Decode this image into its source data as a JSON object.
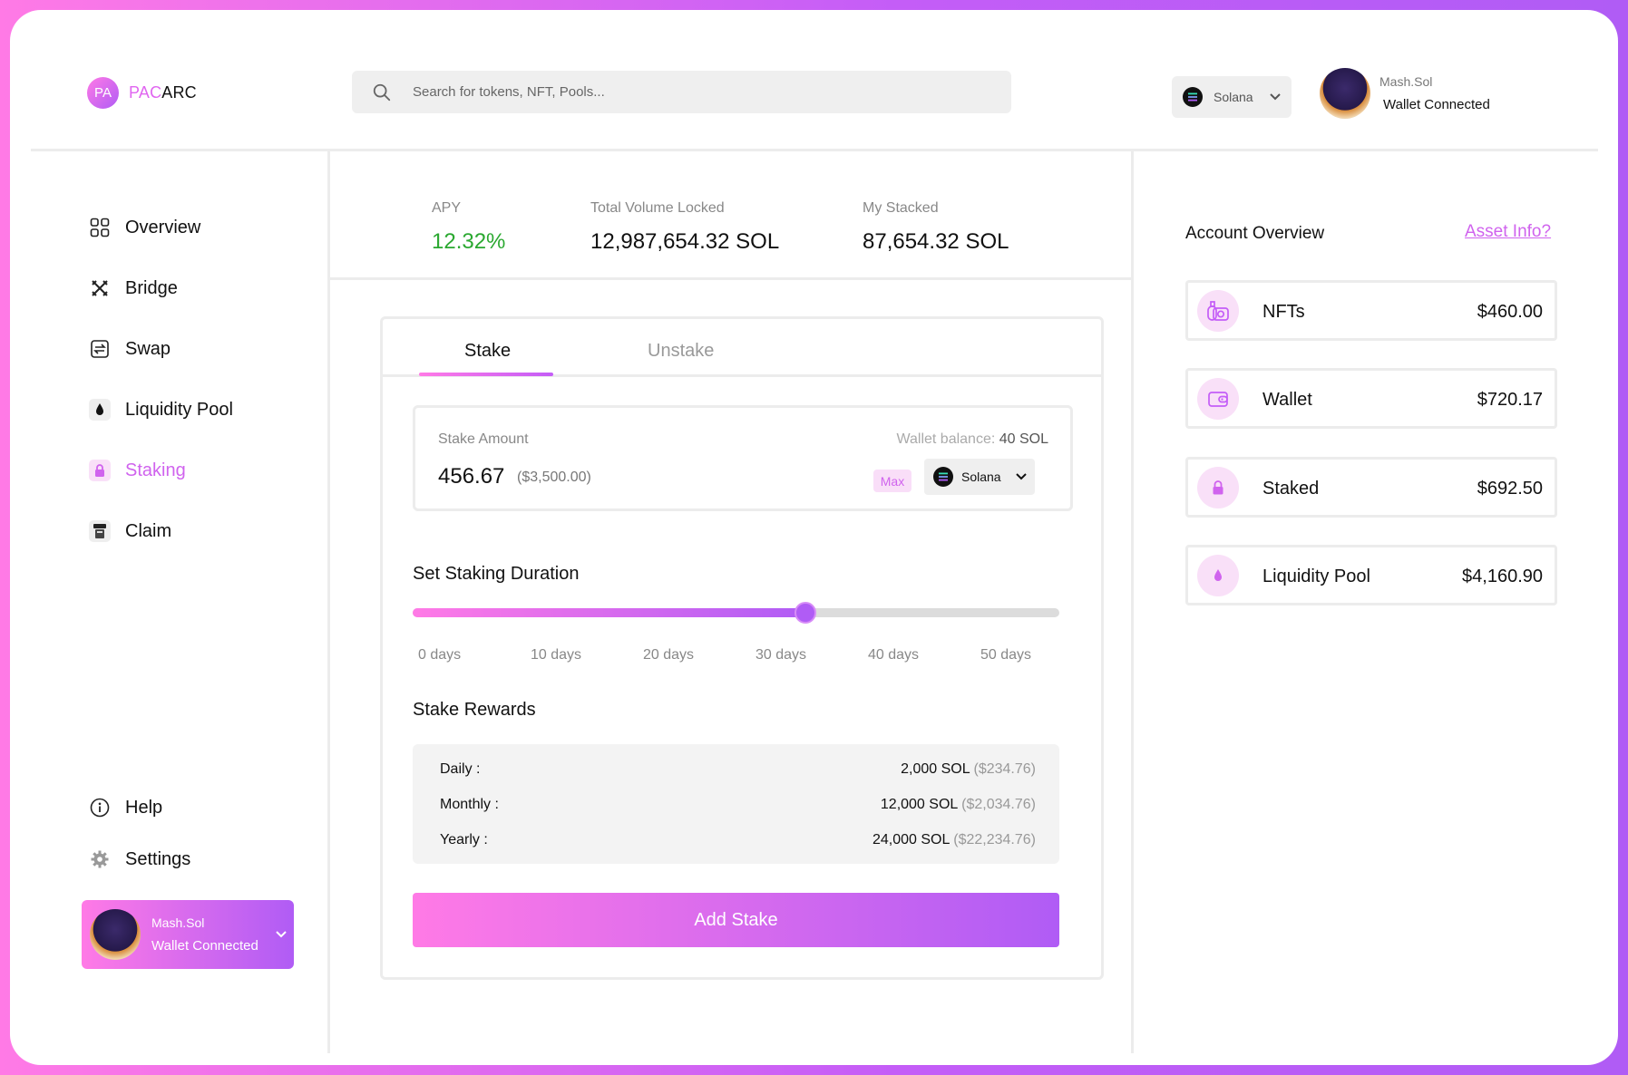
{
  "brand": {
    "badge": "PA",
    "name_accent": "PAC",
    "name_rest": "ARC"
  },
  "search": {
    "placeholder": "Search for tokens, NFT, Pools..."
  },
  "network": {
    "selected": "Solana"
  },
  "user": {
    "name": "Mash.Sol",
    "status": "Wallet Connected"
  },
  "sidebar": {
    "items": [
      {
        "label": "Overview",
        "icon": "grid-icon"
      },
      {
        "label": "Bridge",
        "icon": "bridge-icon"
      },
      {
        "label": "Swap",
        "icon": "swap-icon"
      },
      {
        "label": "Liquidity Pool",
        "icon": "drop-icon"
      },
      {
        "label": "Staking",
        "icon": "lock-icon",
        "active": true
      },
      {
        "label": "Claim",
        "icon": "claim-icon"
      }
    ],
    "bottom": [
      {
        "label": "Help",
        "icon": "info-icon"
      },
      {
        "label": "Settings",
        "icon": "gear-icon"
      }
    ]
  },
  "stats": {
    "apy": {
      "label": "APY",
      "value": "12.32%"
    },
    "tvl": {
      "label": "Total Volume Locked",
      "value": "12,987,654.32 SOL"
    },
    "stacked": {
      "label": "My Stacked",
      "value": "87,654.32 SOL"
    }
  },
  "stake": {
    "tabs": {
      "stake": "Stake",
      "unstake": "Unstake"
    },
    "amount_label": "Stake Amount",
    "wallet_balance_label": "Wallet balance:",
    "wallet_balance_value": "40 SOL",
    "amount": "456.67",
    "amount_usd": "($3,500.00)",
    "max_label": "Max",
    "token": "Solana",
    "duration_title": "Set Staking Duration",
    "duration_fraction": 0.607,
    "ticks": [
      "0 days",
      "10 days",
      "20 days",
      "30 days",
      "40 days",
      "50 days"
    ],
    "rewards_title": "Stake Rewards",
    "rewards": [
      {
        "label": "Daily :",
        "amount": "2,000 SOL",
        "usd": "($234.76)"
      },
      {
        "label": "Monthly :",
        "amount": "12,000 SOL",
        "usd": "($2,034.76)"
      },
      {
        "label": "Yearly :",
        "amount": "24,000 SOL",
        "usd": "($22,234.76)"
      }
    ],
    "button_label": "Add Stake"
  },
  "account": {
    "title": "Account Overview",
    "link": "Asset Info?",
    "items": [
      {
        "label": "NFTs",
        "value": "$460.00",
        "icon": "nft-icon"
      },
      {
        "label": "Wallet",
        "value": "$720.17",
        "icon": "wallet-icon"
      },
      {
        "label": "Staked",
        "value": "$692.50",
        "icon": "lock-icon"
      },
      {
        "label": "Liquidity Pool",
        "value": "$4,160.90",
        "icon": "drop-icon"
      }
    ]
  },
  "colors": {
    "accent": "#d063ee",
    "gradient_start": "#ff7ae6",
    "gradient_end": "#b05cf5",
    "apy": "#2aa830"
  }
}
